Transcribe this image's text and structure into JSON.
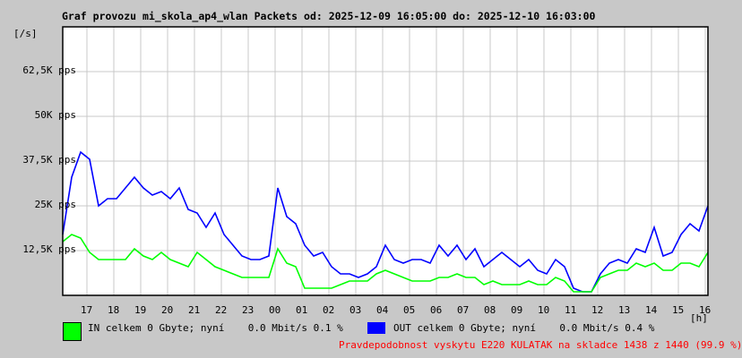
{
  "chart_data": {
    "type": "line",
    "title": "Graf provozu mi_skola_ap4_wlan Packets od: 2025-12-09 16:05:00 do: 2025-12-10 16:03:00",
    "ylabel": "[/s]",
    "xlabel": "[h]",
    "ylim": [
      0,
      75000
    ],
    "yticks": [
      "12,5K pps",
      "25K pps",
      "37,5K pps",
      "50K pps",
      "62,5K pps"
    ],
    "ytick_values": [
      12500,
      25000,
      37500,
      50000,
      62500
    ],
    "xticks": [
      "17",
      "18",
      "19",
      "20",
      "21",
      "22",
      "23",
      "00",
      "01",
      "02",
      "03",
      "04",
      "05",
      "06",
      "07",
      "08",
      "09",
      "10",
      "11",
      "12",
      "13",
      "14",
      "15",
      "16"
    ],
    "x_start_hour_offset": 0.92,
    "sample_interval_hours": 0.3333,
    "grid": true,
    "series": [
      {
        "name": "OUT",
        "color": "#0000ff",
        "values": [
          17,
          33,
          40,
          38,
          25,
          27,
          27,
          30,
          33,
          30,
          28,
          29,
          27,
          30,
          24,
          23,
          19,
          23,
          17,
          14,
          11,
          10,
          10,
          11,
          30,
          22,
          20,
          14,
          11,
          12,
          8,
          6,
          6,
          5,
          6,
          8,
          14,
          10,
          9,
          10,
          10,
          9,
          14,
          11,
          14,
          10,
          13,
          8,
          10,
          12,
          10,
          8,
          10,
          7,
          6,
          10,
          8,
          2,
          1,
          1,
          6,
          9,
          10,
          9,
          13,
          12,
          19,
          11,
          12,
          17,
          20,
          18,
          25
        ]
      },
      {
        "name": "IN",
        "color": "#00ff00",
        "values": [
          15,
          17,
          16,
          12,
          10,
          10,
          10,
          10,
          13,
          11,
          10,
          12,
          10,
          9,
          8,
          12,
          10,
          8,
          7,
          6,
          5,
          5,
          5,
          5,
          13,
          9,
          8,
          2,
          2,
          2,
          2,
          3,
          4,
          4,
          4,
          6,
          7,
          6,
          5,
          4,
          4,
          4,
          5,
          5,
          6,
          5,
          5,
          3,
          4,
          3,
          3,
          3,
          4,
          3,
          3,
          5,
          4,
          1,
          1,
          1,
          5,
          6,
          7,
          7,
          9,
          8,
          9,
          7,
          7,
          9,
          9,
          8,
          12
        ]
      }
    ],
    "value_unit_multiplier": 1000
  },
  "legend": {
    "in": {
      "label": "IN celkem 0 Gbyte; nyní    0.0 Mbit/s 0.1 %",
      "color": "#00ff00"
    },
    "out": {
      "label": "OUT celkem 0 Gbyte; nyní    0.0 Mbit/s 0.4 %",
      "color": "#0000ff"
    }
  },
  "footer": {
    "note": "Pravdepodobnost vyskytu E220 KULATAK na skladce 1438 z 1440 (99.9 %)",
    "color": "#ff0000"
  }
}
